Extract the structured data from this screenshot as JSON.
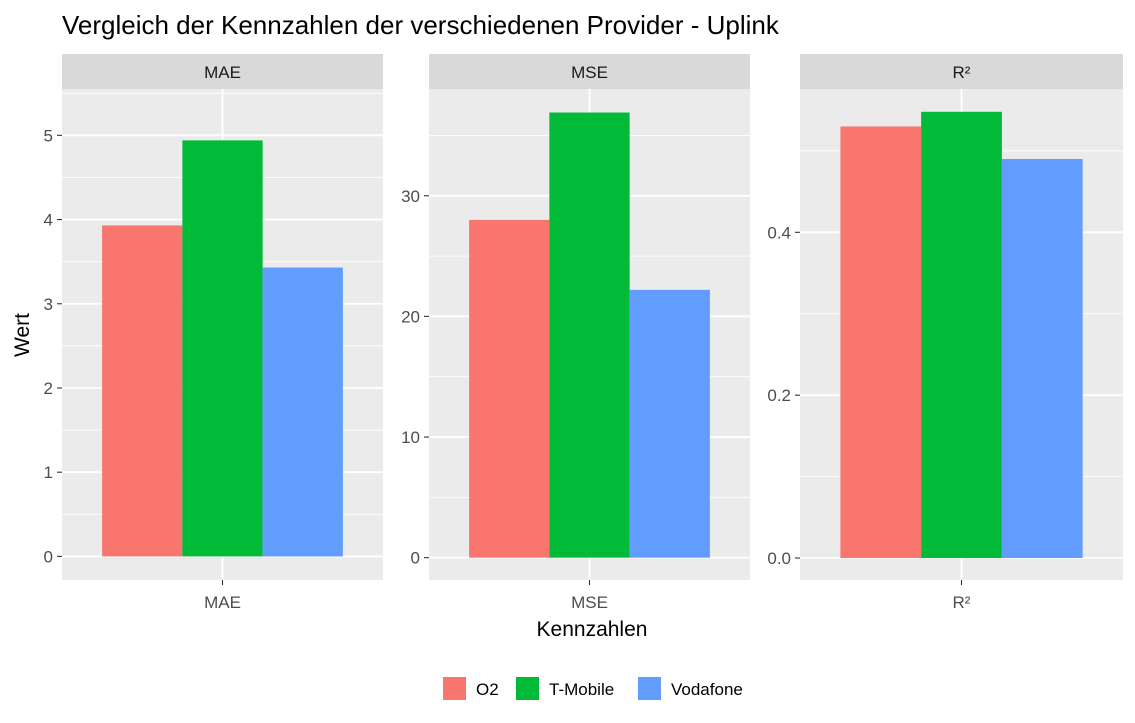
{
  "chart_data": {
    "type": "bar",
    "title": "Vergleich der Kennzahlen der verschiedenen Provider - Uplink",
    "xlabel": "Kennzahlen",
    "ylabel": "Wert",
    "facet_scales": "free_y",
    "grid": true,
    "legend_position": "bottom",
    "series": [
      {
        "name": "O2",
        "color": "#F8766D"
      },
      {
        "name": "T-Mobile",
        "color": "#00BA38"
      },
      {
        "name": "Vodafone",
        "color": "#619CFF"
      }
    ],
    "panels": [
      {
        "strip": "MAE",
        "category": "MAE",
        "values": [
          3.93,
          4.94,
          3.43
        ],
        "ylim": [
          -0.28,
          5.55
        ],
        "ticks": [
          0,
          1,
          2,
          3,
          4,
          5
        ],
        "tick_labels": [
          "0",
          "1",
          "2",
          "3",
          "4",
          "5"
        ]
      },
      {
        "strip": "MSE",
        "category": "MSE",
        "values": [
          28.0,
          36.9,
          22.2
        ],
        "ylim": [
          -1.85,
          38.85
        ],
        "ticks": [
          0,
          10,
          20,
          30
        ],
        "tick_labels": [
          "0",
          "10",
          "20",
          "30"
        ]
      },
      {
        "strip": "R²",
        "category": "R²",
        "values": [
          0.53,
          0.548,
          0.49
        ],
        "ylim": [
          -0.027,
          0.576
        ],
        "ticks": [
          0.0,
          0.2,
          0.4
        ],
        "tick_labels": [
          "0.0",
          "0.2",
          "0.4"
        ]
      }
    ]
  }
}
